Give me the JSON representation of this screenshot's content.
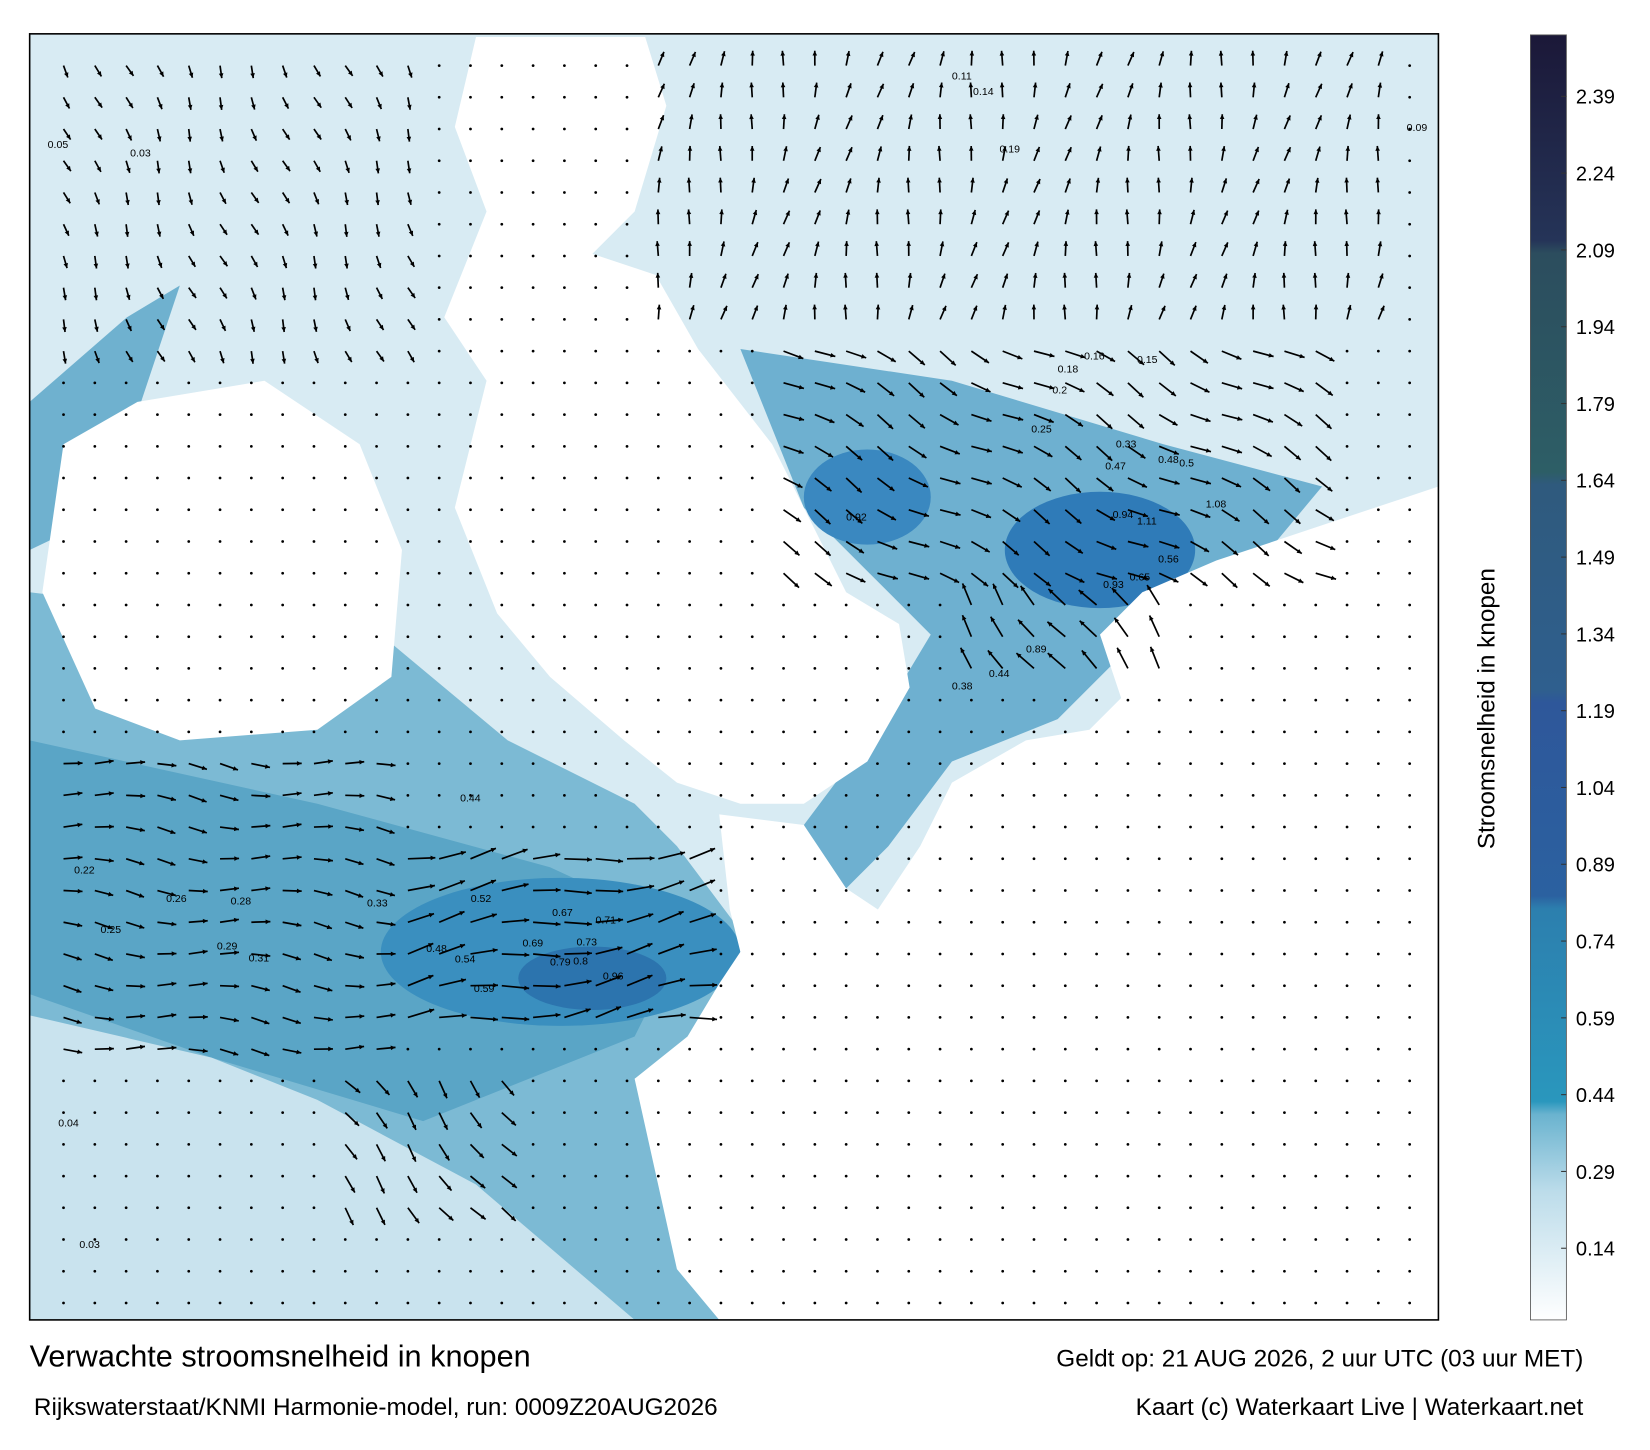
{
  "title": "Verwachte stroomsnelheid in knopen",
  "subtitle": "Rijkswaterstaat/KNMI Harmonie-model, run: 0009Z20AUG2026",
  "valid_time": "Geldt op: 21 AUG 2026, 2 uur UTC (03 uur MET)",
  "credit": "Kaart (c) Waterkaart Live | Waterkaart.net",
  "colorbar": {
    "label": "Stroomsnelheid in knopen",
    "lim": [
      0,
      2.51
    ],
    "ticks": [
      0.14,
      0.29,
      0.44,
      0.59,
      0.74,
      0.89,
      1.04,
      1.19,
      1.34,
      1.49,
      1.64,
      1.79,
      1.94,
      2.09,
      2.24,
      2.39
    ]
  },
  "map_labels": [
    0.92,
    0.94,
    1.11,
    1.08,
    0.96,
    0.8,
    0.79,
    0.73,
    0.71,
    0.67,
    0.69,
    0.59,
    0.48,
    0.54,
    0.52,
    0.44,
    0.33,
    0.31,
    0.29,
    0.28,
    0.26,
    0.25,
    0.22,
    0.05,
    0.03,
    0.04,
    0.03,
    0.09,
    0.2,
    0.25,
    0.16,
    0.15,
    0.18,
    0.38,
    0.44,
    0.89,
    0.93,
    0.65,
    0.56,
    0.5,
    0.48,
    0.47,
    0.33,
    0.19,
    0.14,
    0.11
  ]
}
